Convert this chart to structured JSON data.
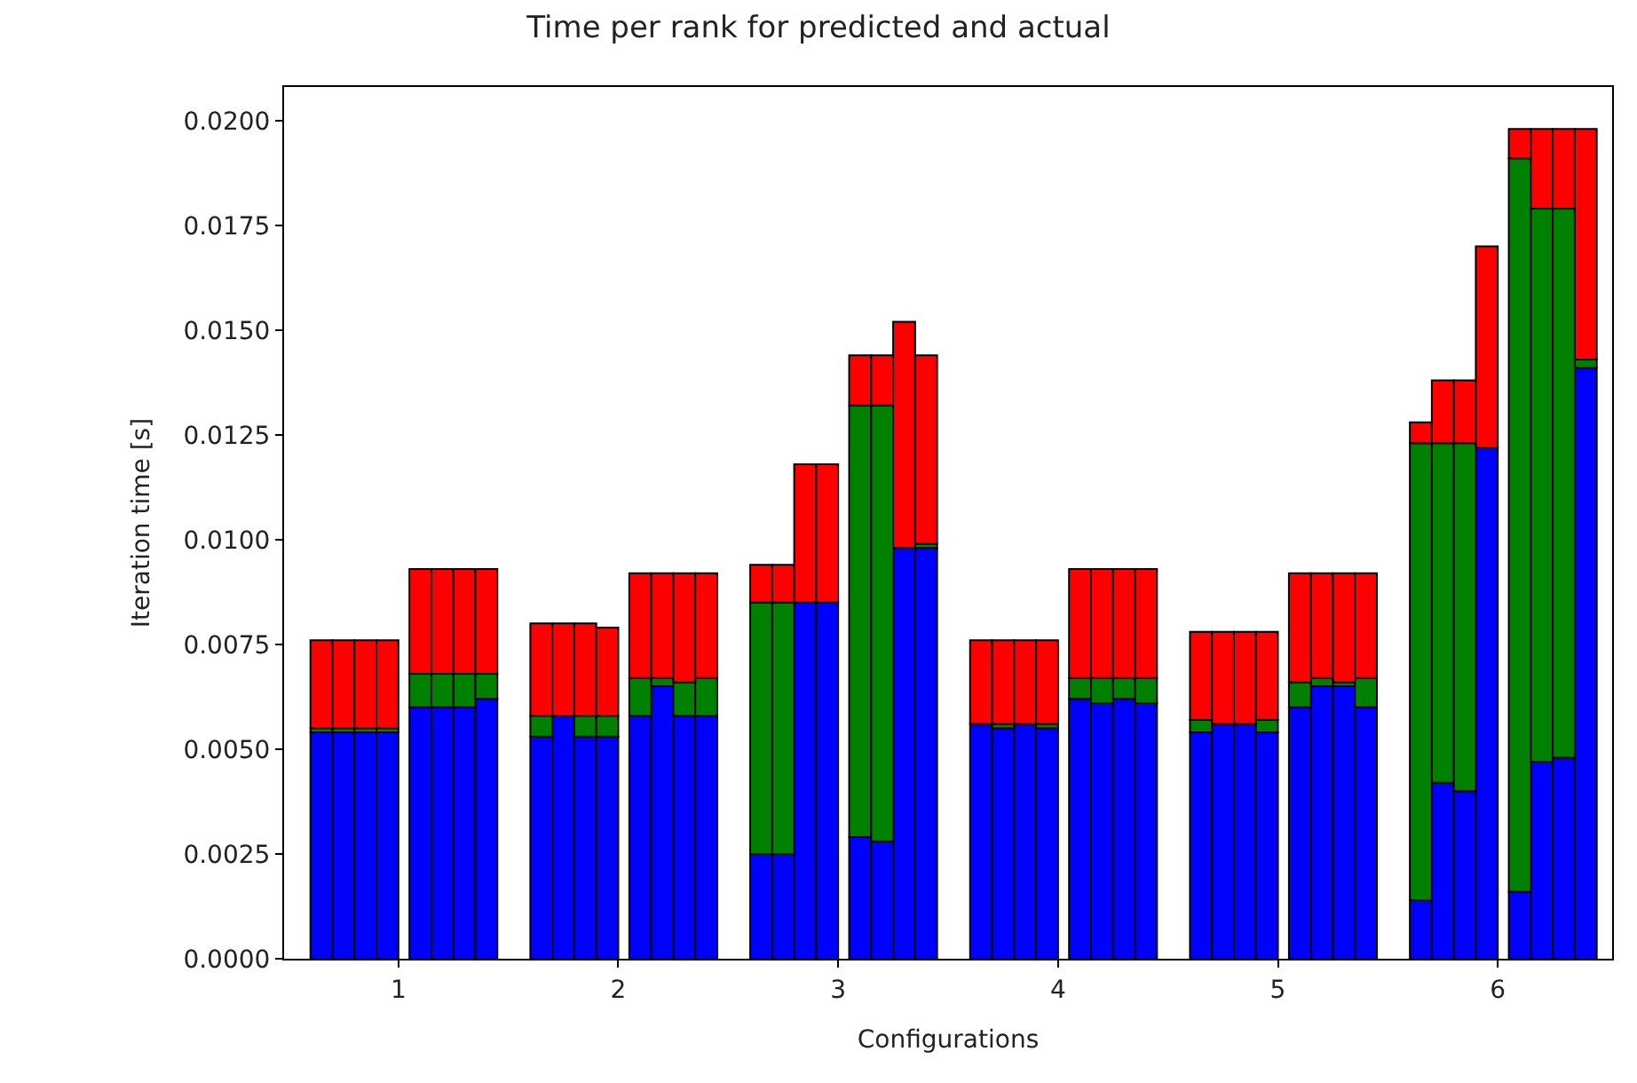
{
  "chart_data": {
    "type": "bar",
    "title": "Time per rank for predicted and actual",
    "xlabel": "Configurations",
    "ylabel": "Iteration time [s]",
    "stacked": true,
    "x": [
      0.65,
      0.75,
      0.85,
      0.95,
      1.1,
      1.2,
      1.3,
      1.4,
      1.65,
      1.75,
      1.85,
      1.95,
      2.1,
      2.2,
      2.3,
      2.4,
      2.65,
      2.75,
      2.85,
      2.95,
      3.1,
      3.2,
      3.3,
      3.4,
      3.65,
      3.75,
      3.85,
      3.95,
      4.1,
      4.2,
      4.3,
      4.4,
      4.65,
      4.75,
      4.85,
      4.95,
      5.1,
      5.2,
      5.3,
      5.4,
      5.65,
      5.75,
      5.85,
      5.95,
      6.1,
      6.2,
      6.3,
      6.4
    ],
    "series": [
      {
        "color": "#0000ff",
        "values": [
          0.0054,
          0.0054,
          0.0054,
          0.0054,
          0.006,
          0.006,
          0.006,
          0.0062,
          0.0053,
          0.0058,
          0.0053,
          0.0053,
          0.0058,
          0.0065,
          0.0058,
          0.0058,
          0.0025,
          0.0025,
          0.0085,
          0.0085,
          0.0029,
          0.0028,
          0.0098,
          0.0098,
          0.0056,
          0.0055,
          0.0056,
          0.0055,
          0.0062,
          0.0061,
          0.0062,
          0.0061,
          0.0054,
          0.0056,
          0.0056,
          0.0054,
          0.006,
          0.0065,
          0.0065,
          0.006,
          0.0014,
          0.0042,
          0.004,
          0.0122,
          0.0016,
          0.0047,
          0.0048,
          0.0141
        ]
      },
      {
        "color": "#008000",
        "values": [
          0.0001,
          0.0001,
          0.0001,
          0.0001,
          0.0008,
          0.0008,
          0.0008,
          0.0006,
          0.0005,
          null,
          0.0005,
          0.0005,
          0.0009,
          0.0002,
          0.0008,
          0.0009,
          0.006,
          0.006,
          null,
          null,
          0.0103,
          0.0104,
          null,
          0.0001,
          null,
          0.0001,
          null,
          0.0001,
          0.0005,
          0.0006,
          0.0005,
          0.0006,
          0.0003,
          null,
          null,
          0.0003,
          0.0006,
          0.0002,
          0.0001,
          0.0007,
          0.0109,
          0.0081,
          0.0083,
          null,
          0.0175,
          0.0132,
          0.0131,
          0.0002
        ]
      },
      {
        "color": "#ff0000",
        "values": [
          0.0021,
          0.0021,
          0.0021,
          0.0021,
          0.0025,
          0.0025,
          0.0025,
          0.0025,
          0.0022,
          0.0022,
          0.0022,
          0.0021,
          0.0025,
          0.0025,
          0.0026,
          0.0025,
          0.0009,
          0.0009,
          0.0033,
          0.0033,
          0.0012,
          0.0012,
          0.0054,
          0.0045,
          0.002,
          0.002,
          0.002,
          0.002,
          0.0026,
          0.0026,
          0.0026,
          0.0026,
          0.0021,
          0.0022,
          0.0022,
          0.0021,
          0.0026,
          0.0025,
          0.0026,
          0.0025,
          0.0005,
          0.0015,
          0.0015,
          0.0048,
          0.0007,
          0.0019,
          0.0019,
          0.0055
        ]
      }
    ],
    "xlim": [
      0.48,
      6.52
    ],
    "xticks": [
      1,
      2,
      3,
      4,
      5,
      6
    ],
    "ylim": [
      0,
      0.0208
    ],
    "yticks": [
      {
        "value": 0,
        "label": "0.0000"
      },
      {
        "value": 0.0025,
        "label": "0.0025"
      },
      {
        "value": 0.005,
        "label": "0.0050"
      },
      {
        "value": 0.0075,
        "label": "0.0075"
      },
      {
        "value": 0.01,
        "label": "0.0100"
      },
      {
        "value": 0.0125,
        "label": "0.0125"
      },
      {
        "value": 0.015,
        "label": "0.0150"
      },
      {
        "value": 0.0175,
        "label": "0.0175"
      },
      {
        "value": 0.02,
        "label": "0.0200"
      }
    ]
  }
}
